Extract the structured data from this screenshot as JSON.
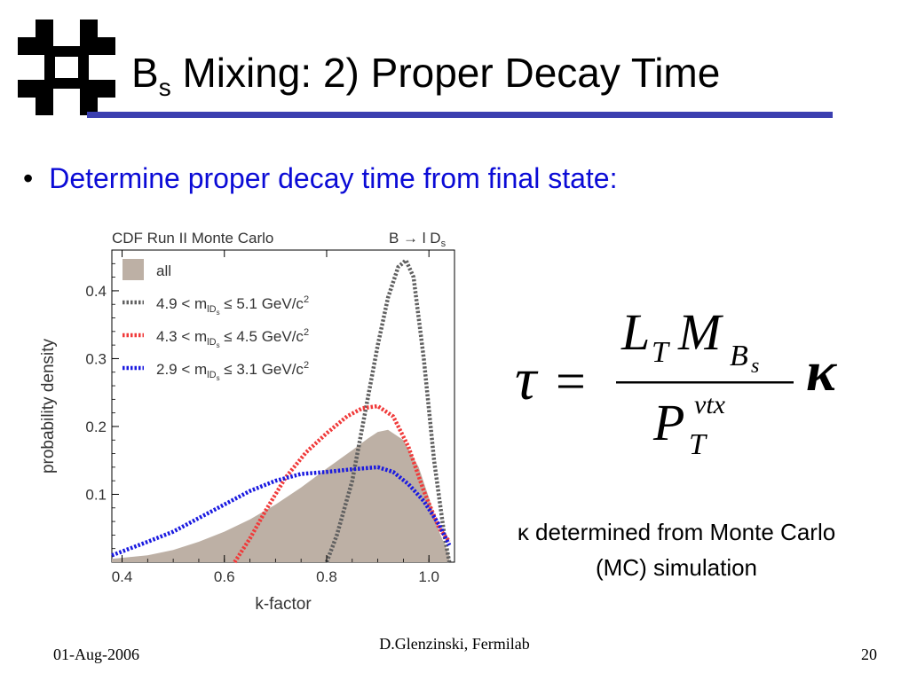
{
  "slide": {
    "title_main": "B",
    "title_sub": "s",
    "title_rest": " Mixing: 2) Proper Decay Time",
    "bullet": "Determine proper decay time from final state:",
    "note_kappa": "κ",
    "note_text": " determined from Monte Carlo (MC) simulation",
    "footer_date": "01-Aug-2006",
    "footer_author": "D.Glenzinski, Fermilab",
    "footer_page": "20",
    "logo": "fermilab-logo-icon",
    "accent": "#3b3fb0",
    "bullet_color": "#0b0bd6"
  },
  "formula": {
    "tau": "τ",
    "eq": "=",
    "L": "L",
    "L_sub": "T",
    "M": "M",
    "M_sub": "B",
    "M_subsub": "s",
    "P": "P",
    "P_sub": "T",
    "P_sup": "vtx",
    "kappa": "κ"
  },
  "chart_data": {
    "type": "area",
    "header_left": "CDF Run II Monte Carlo",
    "header_right_main": "B → l D",
    "header_right_sub": "s",
    "xlabel": "k-factor",
    "ylabel": "probability density",
    "xlim": [
      0.38,
      1.05
    ],
    "ylim": [
      0,
      0.46
    ],
    "xticks": [
      0.4,
      0.6,
      0.8,
      1.0
    ],
    "xtick_labels": [
      "0.4",
      "0.6",
      "0.8",
      "1.0"
    ],
    "yticks": [
      0.1,
      0.2,
      0.3,
      0.4
    ],
    "ytick_labels": [
      "0.1",
      "0.2",
      "0.3",
      "0.4"
    ],
    "legend_position": "top-left",
    "series": [
      {
        "name": "all",
        "style": "fill",
        "color": "#bdb0a5",
        "x": [
          0.38,
          0.45,
          0.5,
          0.55,
          0.6,
          0.65,
          0.7,
          0.75,
          0.8,
          0.85,
          0.88,
          0.9,
          0.92,
          0.95,
          0.98,
          1.0,
          1.02,
          1.04
        ],
        "y": [
          0.005,
          0.01,
          0.018,
          0.03,
          0.045,
          0.063,
          0.085,
          0.11,
          0.138,
          0.165,
          0.182,
          0.192,
          0.195,
          0.18,
          0.14,
          0.095,
          0.045,
          0.01
        ]
      },
      {
        "name": "4.9 < m",
        "label_sub": "lD",
        "label_subsub": "s",
        "label_rest": " ≤ 5.1 GeV/c",
        "label_sup": "2",
        "style": "dotted",
        "color": "#606060",
        "x": [
          0.8,
          0.82,
          0.85,
          0.88,
          0.9,
          0.92,
          0.94,
          0.955,
          0.97,
          0.99,
          1.01,
          1.03,
          1.04
        ],
        "y": [
          0.0,
          0.04,
          0.12,
          0.24,
          0.32,
          0.39,
          0.435,
          0.445,
          0.42,
          0.3,
          0.15,
          0.04,
          0.0
        ]
      },
      {
        "name": "4.3 < m",
        "label_sub": "lD",
        "label_subsub": "s",
        "label_rest": " ≤ 4.5 GeV/c",
        "label_sup": "2",
        "style": "dotted",
        "color": "#f03a3a",
        "x": [
          0.62,
          0.65,
          0.68,
          0.72,
          0.76,
          0.8,
          0.84,
          0.87,
          0.9,
          0.93,
          0.96,
          0.99,
          1.02,
          1.04
        ],
        "y": [
          0.0,
          0.035,
          0.075,
          0.125,
          0.162,
          0.19,
          0.215,
          0.227,
          0.23,
          0.215,
          0.17,
          0.105,
          0.05,
          0.03
        ]
      },
      {
        "name": "2.9 < m",
        "label_sub": "lD",
        "label_subsub": "s",
        "label_rest": " ≤ 3.1 GeV/c",
        "label_sup": "2",
        "style": "dotted",
        "color": "#1a1ae0",
        "x": [
          0.38,
          0.45,
          0.5,
          0.55,
          0.6,
          0.65,
          0.7,
          0.75,
          0.8,
          0.85,
          0.9,
          0.93,
          0.96,
          0.99,
          1.02,
          1.04
        ],
        "y": [
          0.01,
          0.03,
          0.045,
          0.065,
          0.085,
          0.105,
          0.12,
          0.13,
          0.133,
          0.137,
          0.14,
          0.133,
          0.115,
          0.09,
          0.055,
          0.025
        ]
      }
    ]
  }
}
